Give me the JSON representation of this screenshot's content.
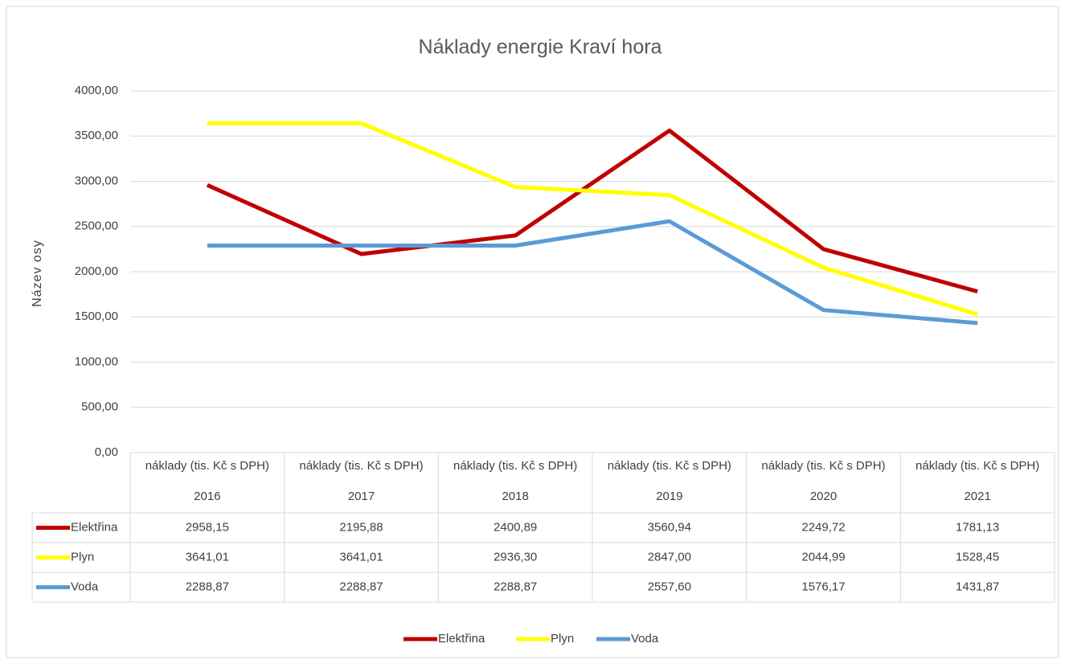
{
  "chart_data": {
    "type": "line",
    "title": "Náklady energie Kraví hora",
    "y_label": "Název osy",
    "categories": [
      [
        "náklady (tis. Kč s DPH)",
        "2016"
      ],
      [
        "náklady (tis. Kč s DPH)",
        "2017"
      ],
      [
        "náklady (tis. Kč s DPH)",
        "2018"
      ],
      [
        "náklady (tis. Kč s DPH)",
        "2019"
      ],
      [
        "náklady (tis. Kč s DPH)",
        "2020"
      ],
      [
        "náklady (tis. Kč s DPH)",
        "2021"
      ]
    ],
    "series": [
      {
        "name": "Elektřina",
        "color": "#c00000",
        "values": [
          2958.15,
          2195.88,
          2400.89,
          3560.94,
          2249.72,
          1781.13
        ],
        "value_labels": [
          "2958,15",
          "2195,88",
          "2400,89",
          "3560,94",
          "2249,72",
          "1781,13"
        ]
      },
      {
        "name": "Plyn",
        "color": "#ffff00",
        "values": [
          3641.01,
          3641.01,
          2936.3,
          2847.0,
          2044.99,
          1528.45
        ],
        "value_labels": [
          "3641,01",
          "3641,01",
          "2936,30",
          "2847,00",
          "2044,99",
          "1528,45"
        ]
      },
      {
        "name": "Voda",
        "color": "#5b9bd5",
        "values": [
          2288.87,
          2288.87,
          2288.87,
          2557.6,
          1576.17,
          1431.87
        ],
        "value_labels": [
          "2288,87",
          "2288,87",
          "2288,87",
          "2557,60",
          "1576,17",
          "1431,87"
        ]
      }
    ],
    "ylim": [
      0,
      4000
    ],
    "yticks": [
      {
        "value": 0,
        "label": "0,00"
      },
      {
        "value": 500,
        "label": "500,00"
      },
      {
        "value": 1000,
        "label": "1000,00"
      },
      {
        "value": 1500,
        "label": "1500,00"
      },
      {
        "value": 2000,
        "label": "2000,00"
      },
      {
        "value": 2500,
        "label": "2500,00"
      },
      {
        "value": 3000,
        "label": "3000,00"
      },
      {
        "value": 3500,
        "label": "3500,00"
      },
      {
        "value": 4000,
        "label": "4000,00"
      }
    ],
    "grid": true,
    "legend": "bottom"
  }
}
